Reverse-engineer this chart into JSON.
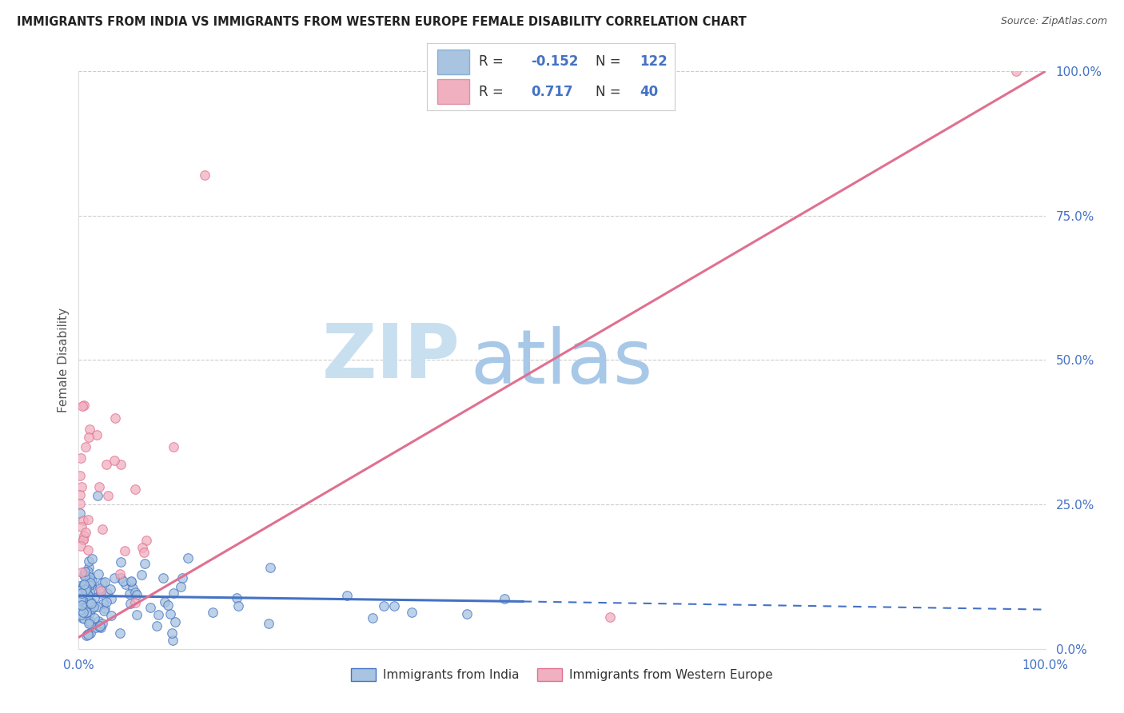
{
  "title": "IMMIGRANTS FROM INDIA VS IMMIGRANTS FROM WESTERN EUROPE FEMALE DISABILITY CORRELATION CHART",
  "source": "Source: ZipAtlas.com",
  "ylabel": "Female Disability",
  "right_ytick_labels": [
    "0.0%",
    "25.0%",
    "50.0%",
    "75.0%",
    "100.0%"
  ],
  "right_ytick_values": [
    0.0,
    0.25,
    0.5,
    0.75,
    1.0
  ],
  "blue_color": "#4472c4",
  "pink_color": "#e07090",
  "blue_scatter_color": "#a8c4e0",
  "pink_scatter_color": "#f0b0c0",
  "watermark_zip_color": "#c8dff0",
  "watermark_atlas_color": "#a8c8e8",
  "legend_R_color": "#4472c4",
  "legend_N_color": "#4472c4",
  "legend_text_color": "#333333",
  "tick_label_color": "#4472c4",
  "grid_color": "#cccccc",
  "title_color": "#222222",
  "source_color": "#555555"
}
